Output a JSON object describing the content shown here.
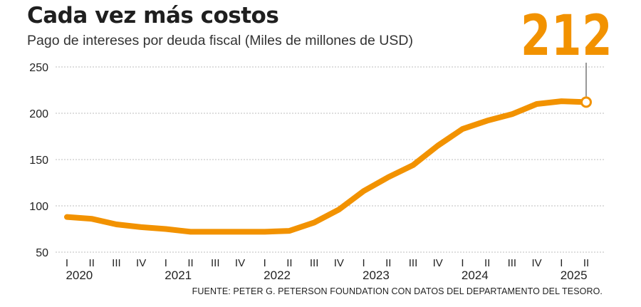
{
  "chart_data": {
    "type": "line",
    "title": "Cada vez más costos",
    "subtitle": "Pago de intereses por deuda fiscal (Miles de millones de USD)",
    "highlight_value": "212",
    "source": "FUENTE: PETER G. PETERSON FOUNDATION CON DATOS DEL DEPARTAMENTO DEL TESORO.",
    "ylim": [
      50,
      250
    ],
    "yticks": [
      "50",
      "100",
      "150",
      "200",
      "250"
    ],
    "grid": true,
    "x": [
      "I",
      "II",
      "III",
      "IV",
      "I",
      "II",
      "III",
      "IV",
      "I",
      "II",
      "III",
      "IV",
      "I",
      "II",
      "III",
      "IV",
      "I",
      "II",
      "III",
      "IV",
      "I",
      "II"
    ],
    "year_labels": [
      "2020",
      "2021",
      "2022",
      "2023",
      "2024",
      "2025"
    ],
    "series": [
      {
        "values": [
          88,
          86,
          80,
          77,
          75,
          72,
          72,
          72,
          72,
          73,
          82,
          96,
          116,
          131,
          144,
          165,
          183,
          192,
          199,
          210,
          213,
          212
        ]
      }
    ],
    "colors": {
      "line": "#f29200",
      "grid": "#bdbdbd",
      "marker_fill": "#ffffff"
    }
  }
}
